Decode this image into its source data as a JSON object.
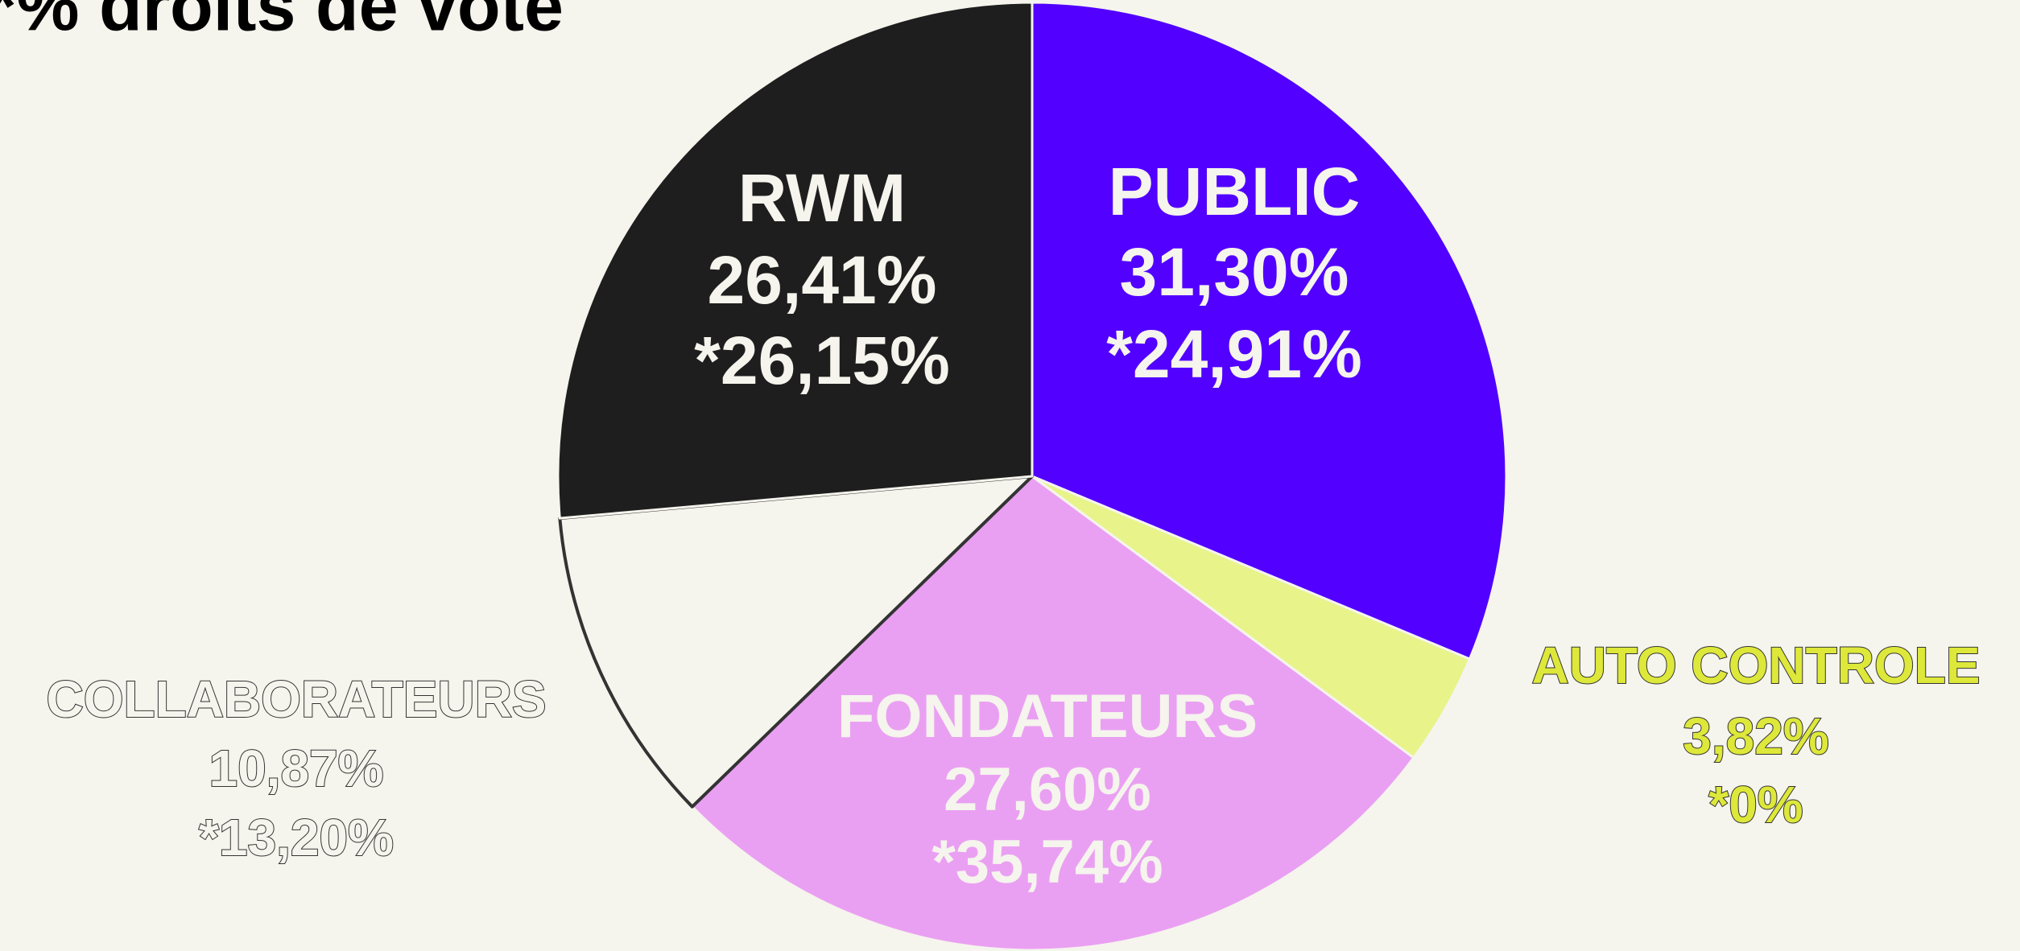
{
  "chart_data": {
    "type": "pie",
    "title": "*% droits de vote",
    "categories": [
      "PUBLIC",
      "AUTO CONTROLE",
      "FONDATEURS",
      "COLLABORATEURS",
      "RWM"
    ],
    "values": [
      31.3,
      3.82,
      27.6,
      10.87,
      26.41
    ],
    "value_labels": [
      "31,30%",
      "3,82%",
      "27,60%",
      "10,87%",
      "26,41%"
    ],
    "voting_values": [
      24.91,
      0,
      35.74,
      13.2,
      26.15
    ],
    "voting_value_labels": [
      "*24,91%",
      "*0%",
      "*35,74%",
      "*13,20%",
      "*26,15%"
    ],
    "colors": [
      "#5200ff",
      "#e8f38a",
      "#eaa0f2",
      "#f5f4ed",
      "#1e1e1e"
    ]
  }
}
